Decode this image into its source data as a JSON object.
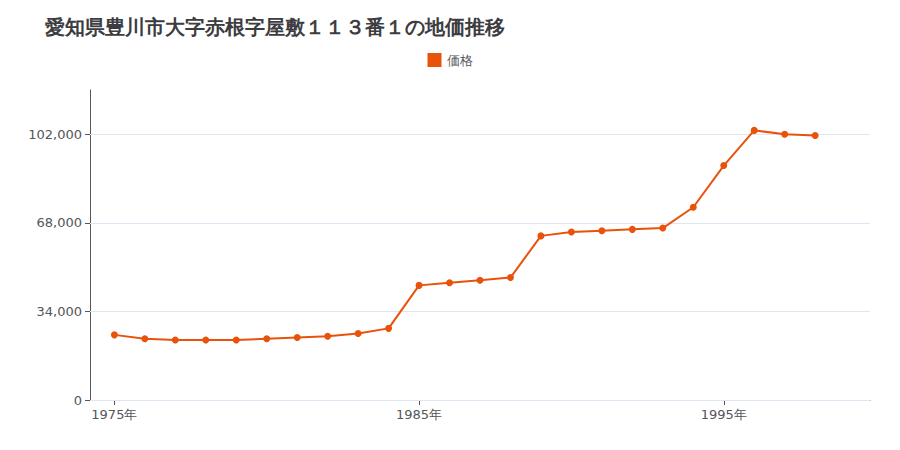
{
  "chart_data": {
    "type": "line",
    "title": "愛知県豊川市大字赤根字屋敷１１３番１の地価推移",
    "x": [
      1975,
      1976,
      1977,
      1978,
      1979,
      1980,
      1981,
      1982,
      1983,
      1984,
      1985,
      1986,
      1987,
      1988,
      1989,
      1990,
      1991,
      1992,
      1993,
      1994,
      1995,
      1996,
      1997,
      1998
    ],
    "series": [
      {
        "name": "価格",
        "color": "#E8520A",
        "marker": "circle",
        "values": [
          25000,
          23500,
          23000,
          23000,
          23000,
          23500,
          24000,
          24500,
          25500,
          27500,
          44000,
          45000,
          46000,
          47000,
          63000,
          64500,
          65000,
          65500,
          66000,
          74000,
          90000,
          103500,
          102000,
          101500
        ]
      }
    ],
    "xlim": [
      1974.2,
      1999.8
    ],
    "xticks": [
      {
        "value": 1975,
        "label": "1975年"
      },
      {
        "value": 1985,
        "label": "1985年"
      },
      {
        "value": 1995,
        "label": "1995年"
      }
    ],
    "ylim": [
      0,
      119000
    ],
    "yticks": [
      0,
      {
        "value": 34000,
        "label": "34,000"
      },
      {
        "value": 68000,
        "label": "68,000"
      },
      {
        "value": 102000,
        "label": "102,000"
      }
    ],
    "grid": "y",
    "legend": "top"
  }
}
